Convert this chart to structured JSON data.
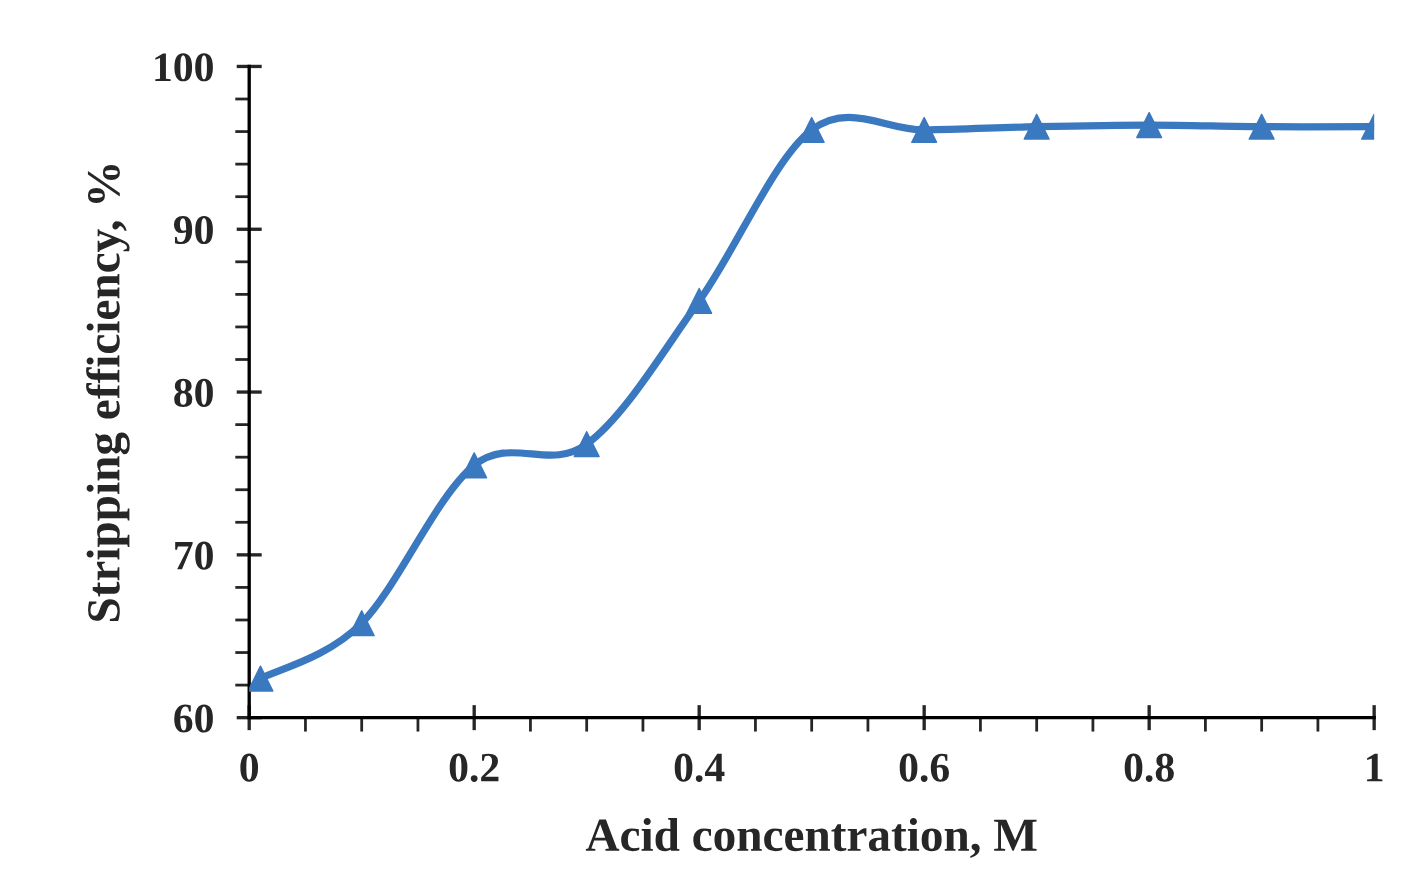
{
  "chart_data": {
    "type": "line",
    "xlabel": "Acid concentration, M",
    "ylabel": "Stripping efficiency, %",
    "x": [
      0.01,
      0.1,
      0.2,
      0.3,
      0.4,
      0.5,
      0.6,
      0.7,
      0.8,
      0.9,
      1.0
    ],
    "series": [
      {
        "color": "#3a78c0",
        "values": [
          62.4,
          65.8,
          75.5,
          76.8,
          85.6,
          96.1,
          96.1,
          96.3,
          96.4,
          96.3,
          96.3
        ]
      }
    ],
    "xlim": [
      0,
      1
    ],
    "xticks": [
      0,
      0.2,
      0.4,
      0.6,
      0.8,
      1
    ],
    "ylim": [
      60,
      100
    ],
    "yticks": [
      60,
      70,
      80,
      90,
      100
    ],
    "marker": "triangle",
    "line_style": "solid",
    "grid": false,
    "legend": false
  }
}
